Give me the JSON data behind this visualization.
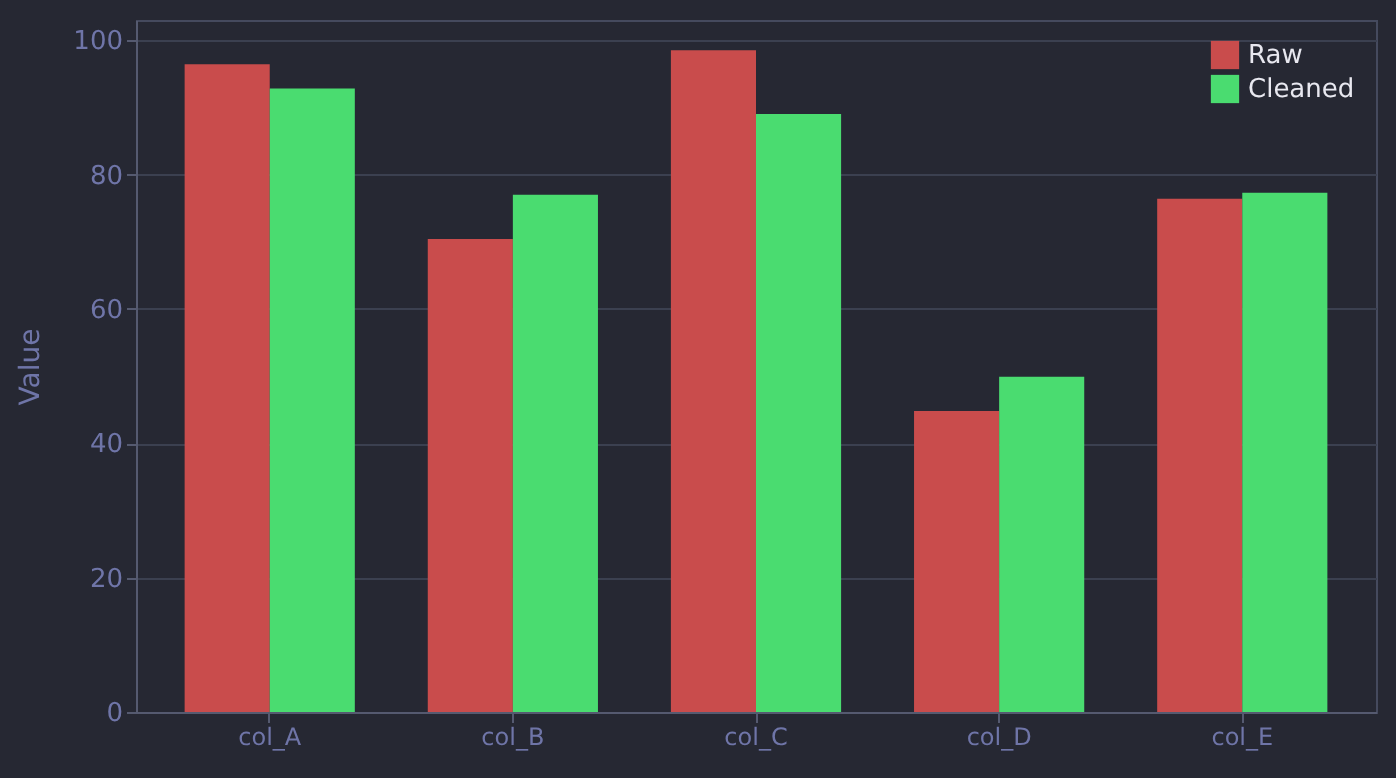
{
  "chart_data": {
    "type": "bar",
    "ylabel": "Value",
    "categories": [
      "col_A",
      "col_B",
      "col_C",
      "col_D",
      "col_E"
    ],
    "series": [
      {
        "name": "Raw",
        "color": "#c94c4c",
        "values": [
          96.4,
          70.4,
          98.5,
          44.8,
          76.4
        ]
      },
      {
        "name": "Cleaned",
        "color": "#4adc70",
        "values": [
          92.8,
          77.0,
          89.0,
          49.9,
          77.3
        ]
      }
    ],
    "ylim": [
      0,
      103
    ],
    "yticks": [
      0,
      20,
      40,
      60,
      80,
      100
    ],
    "grid": "y",
    "legend": "top right"
  }
}
